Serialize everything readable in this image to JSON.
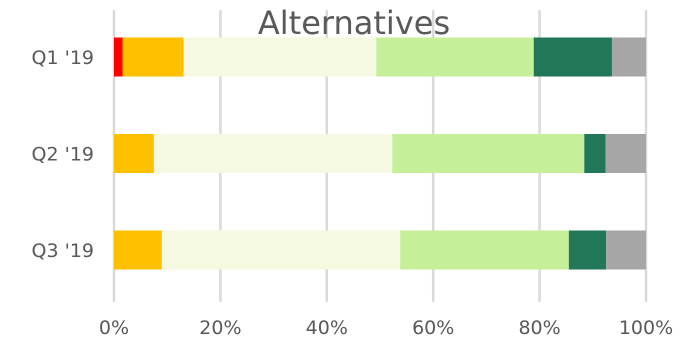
{
  "chart_data": {
    "type": "bar",
    "orientation": "horizontal",
    "stacked": true,
    "percent_stacked": true,
    "title": "Alternatives",
    "xlabel": "",
    "ylabel": "",
    "categories": [
      "Q1 '19",
      "Q2 '19",
      "Q3 '19"
    ],
    "xlim": [
      0,
      100
    ],
    "x_ticks": [
      "0%",
      "20%",
      "40%",
      "60%",
      "80%",
      "100%"
    ],
    "grid": "vertical",
    "legend": "none",
    "series": [
      {
        "color": "#ff0000",
        "values": [
          1.6,
          0,
          0
        ]
      },
      {
        "color": "#ffc000",
        "values": [
          11.5,
          7.5,
          9.0
        ]
      },
      {
        "color": "#f5f9e1",
        "values": [
          36.2,
          44.8,
          44.8
        ]
      },
      {
        "color": "#c6ef99",
        "values": [
          29.6,
          36.1,
          31.7
        ]
      },
      {
        "color": "#227758",
        "values": [
          14.7,
          4.0,
          7.0
        ]
      },
      {
        "color": "#a6a6a6",
        "values": [
          6.4,
          7.6,
          7.5
        ]
      }
    ]
  }
}
